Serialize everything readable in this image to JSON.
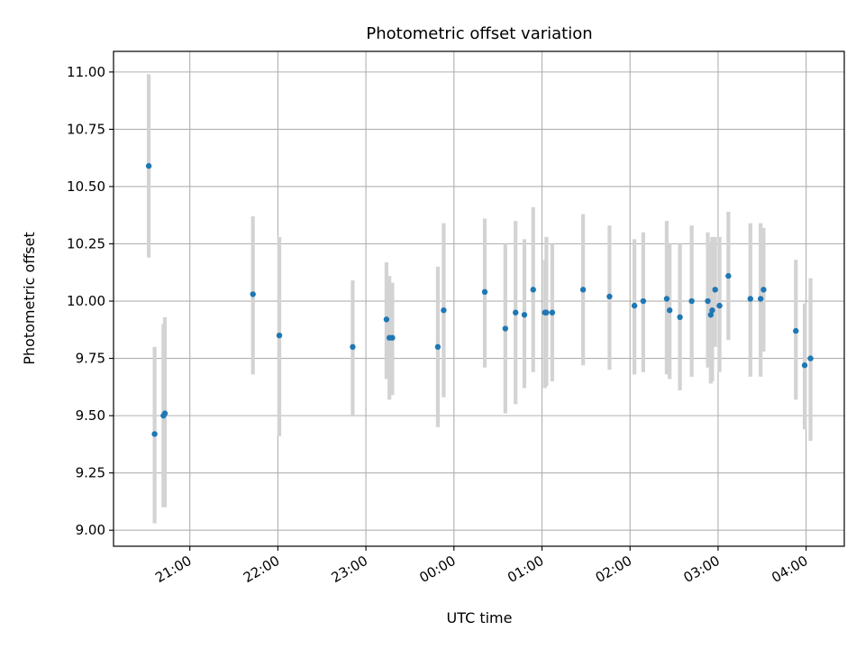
{
  "chart_data": {
    "type": "scatter",
    "title": "Photometric offset variation",
    "xlabel": "UTC time",
    "ylabel": "Photometric offset",
    "x_unit": "UTC hh:mm, night spanning midnight",
    "xlim": [
      "20:08",
      "04:26"
    ],
    "ylim": [
      8.93,
      11.09
    ],
    "x_ticks": [
      "21:00",
      "22:00",
      "23:00",
      "00:00",
      "01:00",
      "02:00",
      "03:00",
      "04:00"
    ],
    "y_ticks": [
      "9.00",
      "9.25",
      "9.50",
      "9.75",
      "10.00",
      "10.25",
      "10.50",
      "10.75",
      "11.00"
    ],
    "grid": true,
    "legend": "none",
    "point_color": "#1f77b4",
    "errorbar_color": "#d3d3d3",
    "points": [
      {
        "time": "20:32",
        "y": 10.59,
        "ylo": 10.19,
        "yhi": 10.99
      },
      {
        "time": "20:36",
        "y": 9.42,
        "ylo": 9.03,
        "yhi": 9.8
      },
      {
        "time": "20:42",
        "y": 9.5,
        "ylo": 9.1,
        "yhi": 9.9
      },
      {
        "time": "20:43",
        "y": 9.51,
        "ylo": 9.1,
        "yhi": 9.93
      },
      {
        "time": "21:43",
        "y": 10.03,
        "ylo": 9.68,
        "yhi": 10.37
      },
      {
        "time": "22:01",
        "y": 9.85,
        "ylo": 9.41,
        "yhi": 10.28
      },
      {
        "time": "22:51",
        "y": 9.8,
        "ylo": 9.5,
        "yhi": 10.09
      },
      {
        "time": "23:14",
        "y": 9.92,
        "ylo": 9.66,
        "yhi": 10.17
      },
      {
        "time": "23:16",
        "y": 9.84,
        "ylo": 9.57,
        "yhi": 10.11
      },
      {
        "time": "23:18",
        "y": 9.84,
        "ylo": 9.59,
        "yhi": 10.08
      },
      {
        "time": "23:49",
        "y": 9.8,
        "ylo": 9.45,
        "yhi": 10.15
      },
      {
        "time": "23:53",
        "y": 9.96,
        "ylo": 9.58,
        "yhi": 10.34
      },
      {
        "time": "00:21",
        "y": 10.04,
        "ylo": 9.71,
        "yhi": 10.36
      },
      {
        "time": "00:35",
        "y": 9.88,
        "ylo": 9.51,
        "yhi": 10.25
      },
      {
        "time": "00:42",
        "y": 9.95,
        "ylo": 9.55,
        "yhi": 10.35
      },
      {
        "time": "00:48",
        "y": 9.94,
        "ylo": 9.62,
        "yhi": 10.27
      },
      {
        "time": "00:54",
        "y": 10.05,
        "ylo": 9.69,
        "yhi": 10.41
      },
      {
        "time": "01:02",
        "y": 9.95,
        "ylo": 9.62,
        "yhi": 10.18
      },
      {
        "time": "01:03",
        "y": 9.95,
        "ylo": 9.63,
        "yhi": 10.28
      },
      {
        "time": "01:07",
        "y": 9.95,
        "ylo": 9.65,
        "yhi": 10.25
      },
      {
        "time": "01:28",
        "y": 10.05,
        "ylo": 9.72,
        "yhi": 10.38
      },
      {
        "time": "01:46",
        "y": 10.02,
        "ylo": 9.7,
        "yhi": 10.33
      },
      {
        "time": "02:03",
        "y": 9.98,
        "ylo": 9.68,
        "yhi": 10.27
      },
      {
        "time": "02:09",
        "y": 10.0,
        "ylo": 9.69,
        "yhi": 10.3
      },
      {
        "time": "02:25",
        "y": 10.01,
        "ylo": 9.68,
        "yhi": 10.35
      },
      {
        "time": "02:27",
        "y": 9.96,
        "ylo": 9.66,
        "yhi": 10.25
      },
      {
        "time": "02:34",
        "y": 9.93,
        "ylo": 9.61,
        "yhi": 10.25
      },
      {
        "time": "02:42",
        "y": 10.0,
        "ylo": 9.67,
        "yhi": 10.33
      },
      {
        "time": "02:53",
        "y": 10.0,
        "ylo": 9.71,
        "yhi": 10.3
      },
      {
        "time": "02:55",
        "y": 9.94,
        "ylo": 9.64,
        "yhi": 10.26
      },
      {
        "time": "02:56",
        "y": 9.96,
        "ylo": 9.65,
        "yhi": 10.28
      },
      {
        "time": "02:58",
        "y": 10.05,
        "ylo": 9.8,
        "yhi": 10.28
      },
      {
        "time": "03:01",
        "y": 9.98,
        "ylo": 9.69,
        "yhi": 10.28
      },
      {
        "time": "03:07",
        "y": 10.11,
        "ylo": 9.83,
        "yhi": 10.39
      },
      {
        "time": "03:22",
        "y": 10.01,
        "ylo": 9.67,
        "yhi": 10.34
      },
      {
        "time": "03:29",
        "y": 10.01,
        "ylo": 9.67,
        "yhi": 10.34
      },
      {
        "time": "03:31",
        "y": 10.05,
        "ylo": 9.78,
        "yhi": 10.32
      },
      {
        "time": "03:53",
        "y": 9.87,
        "ylo": 9.57,
        "yhi": 10.18
      },
      {
        "time": "03:59",
        "y": 9.72,
        "ylo": 9.44,
        "yhi": 9.99
      },
      {
        "time": "04:03",
        "y": 9.75,
        "ylo": 9.39,
        "yhi": 10.1
      }
    ]
  }
}
